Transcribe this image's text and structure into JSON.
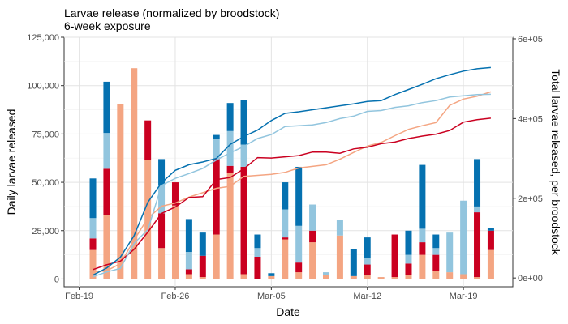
{
  "chart_data": {
    "type": "bar",
    "title": "Larvae release (normalized by broodstock)",
    "subtitle": "6-week exposure",
    "xlabel": "Date",
    "ylabel": "Daily larvae released",
    "y2label": "Total larvae released, per broodstock",
    "x_start": "2024-02-19",
    "x_tick_labels": [
      "Feb-19",
      "Feb-26",
      "Mar-05",
      "Mar-12",
      "Mar-19"
    ],
    "ylim": [
      -4000,
      125000
    ],
    "y_ticks": [
      0,
      25000,
      50000,
      75000,
      100000,
      125000
    ],
    "y_tick_labels": [
      "0",
      "25,000",
      "50,000",
      "75,000",
      "100,000",
      "125,000"
    ],
    "y2lim": [
      -22000,
      604000
    ],
    "y2_ticks": [
      0,
      200000,
      400000,
      600000
    ],
    "y2_tick_labels": [
      "0e+00",
      "2e+05",
      "4e+05",
      "6e+05"
    ],
    "grid": true,
    "dates": [
      "2024-02-20",
      "2024-02-21",
      "2024-02-22",
      "2024-02-23",
      "2024-02-24",
      "2024-02-25",
      "2024-02-26",
      "2024-02-27",
      "2024-02-28",
      "2024-02-29",
      "2024-03-01",
      "2024-03-02",
      "2024-03-03",
      "2024-03-04",
      "2024-03-05",
      "2024-03-06",
      "2024-03-07",
      "2024-03-08",
      "2024-03-09",
      "2024-03-10",
      "2024-03-11",
      "2024-03-12",
      "2024-03-13",
      "2024-03-14",
      "2024-03-15",
      "2024-03-16",
      "2024-03-17",
      "2024-03-18",
      "2024-03-19",
      "2024-03-20"
    ],
    "series": [
      {
        "color": "#f4a582",
        "values": [
          15000,
          33000,
          90500,
          109000,
          61500,
          16000,
          38000,
          2500,
          1000,
          23000,
          55000,
          2500,
          0,
          1500,
          20500,
          3500,
          19000,
          2000,
          22500,
          1500,
          2000,
          1000,
          1000,
          2000,
          12500,
          4000,
          3500,
          2500,
          1000,
          15000
        ]
      },
      {
        "color": "#ca0020",
        "values": [
          6000,
          24000,
          0,
          0,
          20500,
          18000,
          12000,
          2500,
          11000,
          39000,
          3500,
          55500,
          11500,
          0,
          1000,
          5000,
          6000,
          0,
          0,
          0,
          5500,
          0,
          22000,
          6000,
          6500,
          8500,
          0,
          0,
          33500,
          10000
        ]
      },
      {
        "color": "#92c5de",
        "values": [
          10500,
          18500,
          0,
          0,
          0,
          14500,
          0,
          9000,
          0,
          10500,
          18000,
          11500,
          4500,
          0,
          14500,
          19000,
          13500,
          1500,
          8000,
          0,
          3500,
          0,
          0,
          4500,
          7000,
          3500,
          20500,
          38000,
          3000,
          0
        ]
      },
      {
        "color": "#0571b0",
        "values": [
          20500,
          26500,
          0,
          0,
          0,
          13500,
          0,
          17000,
          12000,
          2000,
          14500,
          23000,
          7000,
          1500,
          14000,
          30500,
          0,
          0,
          0,
          14000,
          10500,
          0,
          0,
          12500,
          33000,
          7000,
          0,
          0,
          24500,
          1500
        ]
      },
      {
        "color": "#f4a582",
        "values": [
          15000,
          18000,
          36000,
          95000,
          150000,
          180000,
          188000,
          203000,
          214000,
          225000,
          230000,
          255000,
          257500,
          260000,
          265000,
          276000,
          280000,
          284000,
          298000,
          315000,
          331000,
          340000,
          357000,
          373000,
          382000,
          390000,
          433000,
          449000,
          456000,
          467000
        ]
      },
      {
        "color": "#ca0020",
        "values": [
          21000,
          33000,
          42000,
          72000,
          115000,
          162000,
          178000,
          202000,
          204000,
          247000,
          252000,
          274000,
          302000,
          301000,
          304000,
          307000,
          316000,
          316000,
          313000,
          324000,
          328000,
          337000,
          341000,
          350000,
          356000,
          361000,
          370000,
          391000,
          397000,
          401000
        ]
      },
      {
        "color": "#92c5de",
        "values": [
          3000,
          15000,
          24000,
          87000,
          121000,
          232000,
          250000,
          262000,
          275000,
          296000,
          314000,
          330000,
          350000,
          360000,
          380000,
          382000,
          384000,
          390000,
          400000,
          406000,
          418000,
          420000,
          428000,
          432000,
          440000,
          445000,
          454000,
          457000,
          460000,
          461000
        ]
      },
      {
        "color": "#0571b0",
        "values": [
          7000,
          25000,
          52000,
          106000,
          190000,
          239000,
          270000,
          284000,
          291000,
          300000,
          335000,
          355000,
          371000,
          395000,
          413000,
          417000,
          422000,
          427000,
          432000,
          437000,
          443000,
          445000,
          460000,
          473000,
          486000,
          500000,
          510000,
          519000,
          525000,
          528000
        ]
      }
    ]
  }
}
